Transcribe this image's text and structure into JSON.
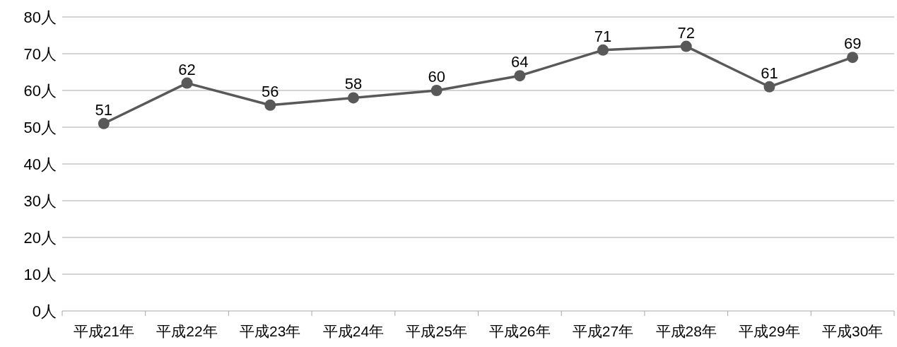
{
  "chart_data": {
    "type": "line",
    "categories": [
      "平成21年",
      "平成22年",
      "平成23年",
      "平成24年",
      "平成25年",
      "平成26年",
      "平成27年",
      "平成28年",
      "平成29年",
      "平成30年"
    ],
    "values": [
      51,
      62,
      56,
      58,
      60,
      64,
      71,
      72,
      61,
      69
    ],
    "color": "#595959",
    "ylim": [
      0,
      80
    ],
    "yticks": [
      {
        "value": 0,
        "label": "0人"
      },
      {
        "value": 10,
        "label": "10人"
      },
      {
        "value": 20,
        "label": "20人"
      },
      {
        "value": 30,
        "label": "30人"
      },
      {
        "value": 40,
        "label": "40人"
      },
      {
        "value": 50,
        "label": "50人"
      },
      {
        "value": 60,
        "label": "60人"
      },
      {
        "value": 70,
        "label": "70人"
      },
      {
        "value": 80,
        "label": "80人"
      }
    ],
    "grid": "y",
    "marker": "circle",
    "data_labels": true
  }
}
